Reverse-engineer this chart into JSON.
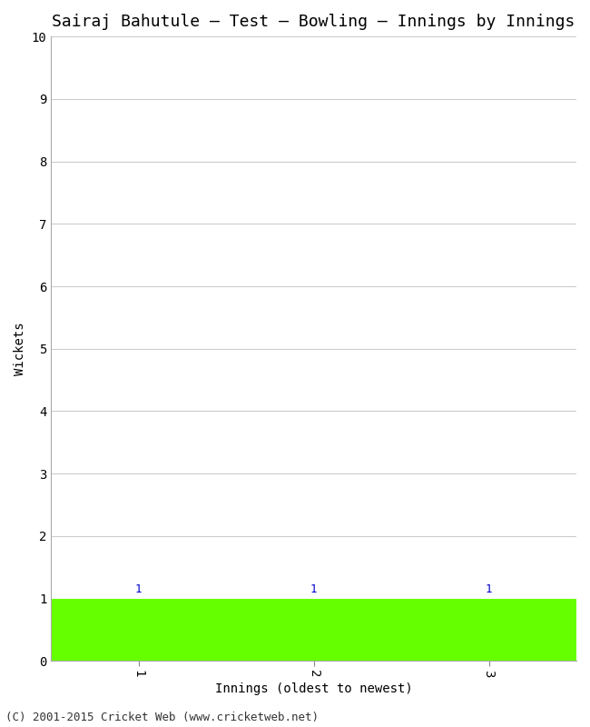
{
  "title": "Sairaj Bahutule – Test – Bowling – Innings by Innings",
  "xlabel": "Innings (oldest to newest)",
  "ylabel": "Wickets",
  "categories": [
    1,
    2,
    3
  ],
  "values": [
    1,
    1,
    1
  ],
  "bar_color": "#66ff00",
  "bar_edge_color": "#66ff00",
  "ylim": [
    0,
    10
  ],
  "yticks": [
    0,
    1,
    2,
    3,
    4,
    5,
    6,
    7,
    8,
    9,
    10
  ],
  "xticks": [
    1,
    2,
    3
  ],
  "xlim": [
    0.5,
    3.5
  ],
  "annotation_color": "#0000cc",
  "annotation_fontsize": 9,
  "background_color": "#ffffff",
  "grid_color": "#cccccc",
  "title_fontsize": 13,
  "axis_fontsize": 10,
  "tick_fontsize": 10,
  "xlabel_fontsize": 10,
  "footer_text": "(C) 2001-2015 Cricket Web (www.cricketweb.net)",
  "footer_fontsize": 9
}
